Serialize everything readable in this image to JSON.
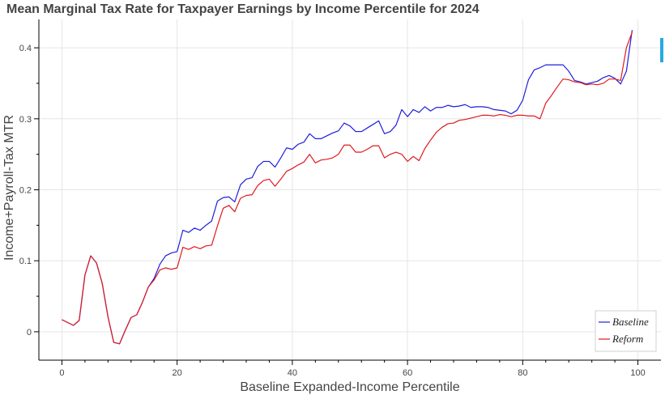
{
  "colors": {
    "baseline": "#1f1fdd",
    "reform": "#e0191e",
    "toolbar_accent": "#26aae1"
  },
  "chart_data": {
    "type": "line",
    "title": "Mean Marginal Tax Rate for Taxpayer Earnings by Income Percentile for 2024",
    "xlabel": "Baseline Expanded-Income Percentile",
    "ylabel": "Income+Payroll-Tax MTR",
    "xlim": [
      -4,
      104
    ],
    "ylim": [
      -0.04,
      0.44
    ],
    "x_ticks": [
      0,
      20,
      40,
      60,
      80,
      100
    ],
    "y_ticks": [
      0,
      0.1,
      0.2,
      0.3,
      0.4
    ],
    "x_tick_labels": [
      "0",
      "20",
      "40",
      "60",
      "80",
      "100"
    ],
    "y_tick_labels": [
      "0",
      "0.1",
      "0.2",
      "0.3",
      "0.4"
    ],
    "grid": true,
    "legend_position": "bottom-right",
    "x": [
      0,
      1,
      2,
      3,
      4,
      5,
      6,
      7,
      8,
      9,
      10,
      11,
      12,
      13,
      14,
      15,
      16,
      17,
      18,
      19,
      20,
      21,
      22,
      23,
      24,
      25,
      26,
      27,
      28,
      29,
      30,
      31,
      32,
      33,
      34,
      35,
      36,
      37,
      38,
      39,
      40,
      41,
      42,
      43,
      44,
      45,
      46,
      47,
      48,
      49,
      50,
      51,
      52,
      53,
      54,
      55,
      56,
      57,
      58,
      59,
      60,
      61,
      62,
      63,
      64,
      65,
      66,
      67,
      68,
      69,
      70,
      71,
      72,
      73,
      74,
      75,
      76,
      77,
      78,
      79,
      80,
      81,
      82,
      83,
      84,
      85,
      86,
      87,
      88,
      89,
      90,
      91,
      92,
      93,
      94,
      95,
      96,
      97,
      98,
      99
    ],
    "series": [
      {
        "name": "Baseline",
        "color": "#1f1fdd",
        "values": [
          0.017,
          0.013,
          0.009,
          0.016,
          0.08,
          0.107,
          0.097,
          0.068,
          0.021,
          -0.015,
          -0.017,
          0.002,
          0.02,
          0.024,
          0.042,
          0.063,
          0.075,
          0.095,
          0.107,
          0.111,
          0.113,
          0.143,
          0.14,
          0.146,
          0.143,
          0.15,
          0.156,
          0.184,
          0.189,
          0.19,
          0.183,
          0.207,
          0.215,
          0.217,
          0.233,
          0.24,
          0.24,
          0.232,
          0.245,
          0.259,
          0.257,
          0.264,
          0.267,
          0.279,
          0.272,
          0.272,
          0.276,
          0.28,
          0.283,
          0.294,
          0.29,
          0.282,
          0.282,
          0.287,
          0.292,
          0.297,
          0.279,
          0.282,
          0.291,
          0.313,
          0.303,
          0.313,
          0.309,
          0.317,
          0.311,
          0.316,
          0.316,
          0.319,
          0.317,
          0.318,
          0.32,
          0.316,
          0.317,
          0.317,
          0.316,
          0.313,
          0.312,
          0.311,
          0.307,
          0.312,
          0.326,
          0.355,
          0.369,
          0.372,
          0.376,
          0.376,
          0.376,
          0.376,
          0.367,
          0.354,
          0.352,
          0.349,
          0.351,
          0.353,
          0.358,
          0.361,
          0.357,
          0.349,
          0.367,
          0.425
        ]
      },
      {
        "name": "Reform",
        "color": "#e0191e",
        "values": [
          0.017,
          0.013,
          0.009,
          0.016,
          0.08,
          0.107,
          0.097,
          0.068,
          0.021,
          -0.015,
          -0.017,
          0.002,
          0.02,
          0.024,
          0.042,
          0.063,
          0.073,
          0.087,
          0.09,
          0.088,
          0.09,
          0.119,
          0.116,
          0.12,
          0.117,
          0.121,
          0.122,
          0.149,
          0.174,
          0.178,
          0.169,
          0.188,
          0.192,
          0.193,
          0.206,
          0.213,
          0.215,
          0.205,
          0.215,
          0.226,
          0.23,
          0.235,
          0.239,
          0.25,
          0.238,
          0.242,
          0.243,
          0.245,
          0.25,
          0.263,
          0.263,
          0.253,
          0.253,
          0.257,
          0.262,
          0.262,
          0.245,
          0.25,
          0.253,
          0.25,
          0.24,
          0.247,
          0.241,
          0.258,
          0.27,
          0.281,
          0.288,
          0.293,
          0.294,
          0.298,
          0.299,
          0.301,
          0.303,
          0.305,
          0.305,
          0.304,
          0.306,
          0.305,
          0.303,
          0.305,
          0.305,
          0.304,
          0.304,
          0.3,
          0.322,
          0.333,
          0.345,
          0.356,
          0.355,
          0.352,
          0.351,
          0.348,
          0.349,
          0.348,
          0.35,
          0.356,
          0.356,
          0.354,
          0.4,
          0.422
        ]
      }
    ]
  }
}
